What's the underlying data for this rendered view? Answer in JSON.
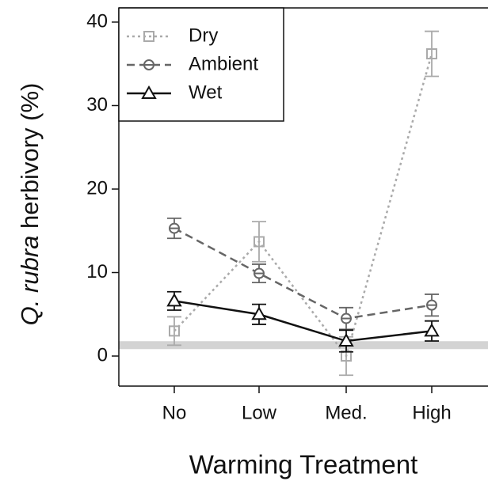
{
  "chart_data": {
    "type": "line",
    "ylabel_italic": "Q. rubra",
    "ylabel_rest": "herbivory (%)",
    "xlabel": "Warming Treatment",
    "categories": [
      "No",
      "Low",
      "Med.",
      "High"
    ],
    "series": [
      {
        "name": "Dry",
        "color": "#aaaaaa",
        "dash": "3,4",
        "marker": "square",
        "values": [
          3.0,
          13.7,
          0,
          36.2
        ],
        "errors": [
          1.7,
          2.4,
          2.3,
          2.7
        ]
      },
      {
        "name": "Ambient",
        "color": "#666666",
        "dash": "10,6",
        "marker": "circle",
        "values": [
          15.3,
          9.9,
          4.5,
          6.1
        ],
        "errors": [
          1.2,
          1.1,
          1.3,
          1.3
        ]
      },
      {
        "name": "Wet",
        "color": "#111111",
        "dash": "",
        "marker": "triangle",
        "values": [
          6.6,
          5.0,
          1.8,
          3.0
        ],
        "errors": [
          1.1,
          1.2,
          1.3,
          1.2
        ]
      }
    ],
    "hline": 1.3,
    "hline_color": "#d3d3d3",
    "ylim": [
      -3.6,
      41.7
    ],
    "yticks": [
      0,
      10,
      20,
      30,
      40
    ],
    "legend": "upper left"
  }
}
